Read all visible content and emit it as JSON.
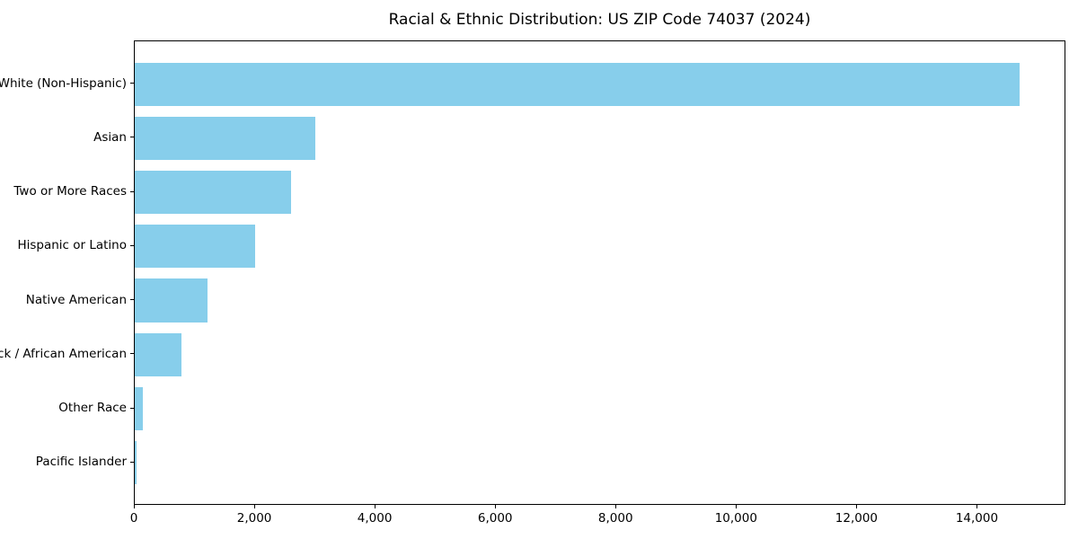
{
  "chart_data": {
    "type": "bar",
    "orientation": "horizontal",
    "title": "Racial & Ethnic Distribution: US ZIP Code 74037 (2024)",
    "categories": [
      "White (Non-Hispanic)",
      "Asian",
      "Two or More Races",
      "Hispanic or Latino",
      "Native American",
      "Black / African American",
      "Other Race",
      "Pacific Islander"
    ],
    "values": [
      14730,
      3010,
      2600,
      2000,
      1210,
      770,
      140,
      35
    ],
    "xlabel": "",
    "ylabel": "",
    "xlim": [
      0,
      15470
    ],
    "xticks": [
      0,
      2000,
      4000,
      6000,
      8000,
      10000,
      12000,
      14000
    ],
    "xtick_labels": [
      "0",
      "2,000",
      "4,000",
      "6,000",
      "8,000",
      "10,000",
      "12,000",
      "14,000"
    ],
    "bar_color": "#87CEEB",
    "grid": false,
    "legend": null,
    "background_color": "#ffffff",
    "text_color": "#000000"
  }
}
